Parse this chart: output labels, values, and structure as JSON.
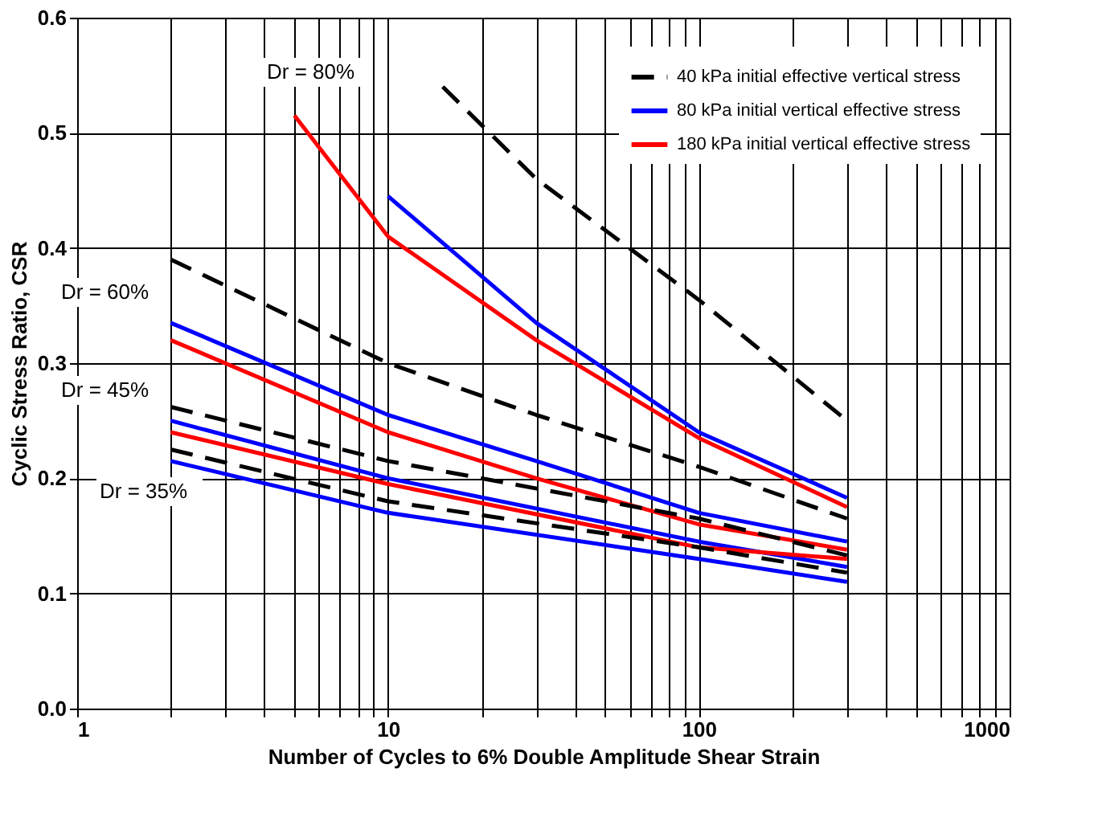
{
  "chart_data": {
    "type": "line",
    "xlabel": "Number of Cycles to 6% Double Amplitude Shear Strain",
    "ylabel": "Cyclic Stress Ratio, CSR",
    "log": "x",
    "grid": true,
    "legend": "top right",
    "xlim": [
      1,
      1000
    ],
    "ylim": [
      0,
      0.6
    ],
    "xticks": [
      1,
      {
        "value": 2,
        "label": null
      },
      {
        "value": 3,
        "label": null
      },
      {
        "value": 4,
        "label": null
      },
      {
        "value": 5,
        "label": null
      },
      {
        "value": 6,
        "label": null
      },
      {
        "value": 7,
        "label": null
      },
      {
        "value": 8,
        "label": null
      },
      {
        "value": 9,
        "label": null
      },
      10,
      {
        "value": 20,
        "label": null
      },
      {
        "value": 30,
        "label": null
      },
      {
        "value": 40,
        "label": null
      },
      {
        "value": 50,
        "label": null
      },
      {
        "value": 60,
        "label": null
      },
      {
        "value": 70,
        "label": null
      },
      {
        "value": 80,
        "label": null
      },
      {
        "value": 90,
        "label": null
      },
      100,
      {
        "value": 200,
        "label": null
      },
      {
        "value": 300,
        "label": null
      },
      {
        "value": 400,
        "label": null
      },
      {
        "value": 500,
        "label": null
      },
      {
        "value": 600,
        "label": null
      },
      {
        "value": 700,
        "label": null
      },
      {
        "value": 800,
        "label": null
      },
      {
        "value": 900,
        "label": null
      },
      1000
    ],
    "yticks": [
      {
        "value": 0,
        "label": "0.0"
      },
      0.1,
      0.2,
      0.3,
      0.4,
      0.5,
      0.6
    ],
    "series": [
      {
        "name": "40 kPa initial effective vertical stress",
        "color": "#000000",
        "line_style": "dashed",
        "x": [
          15,
          30,
          100,
          300
        ],
        "values": [
          0.54,
          0.46,
          0.355,
          0.25
        ]
      },
      {
        "name": "80 kPa initial vertical effective stress",
        "color": "#0000ff",
        "line_style": "solid",
        "x": [
          10,
          30,
          100,
          300
        ],
        "values": [
          0.445,
          0.335,
          0.24,
          0.183
        ]
      },
      {
        "name": "180 kPa initial vertical effective stress",
        "color": "#ff0000",
        "line_style": "solid",
        "x": [
          5,
          10,
          30,
          100,
          300
        ],
        "values": [
          0.515,
          0.41,
          0.32,
          0.235,
          0.175
        ]
      },
      {
        "color": "#000000",
        "line_style": "dashed",
        "x": [
          2,
          10,
          30,
          100,
          300
        ],
        "values": [
          0.39,
          0.3,
          0.255,
          0.21,
          0.165
        ]
      },
      {
        "color": "#0000ff",
        "line_style": "solid",
        "x": [
          2,
          10,
          30,
          100,
          300
        ],
        "values": [
          0.335,
          0.255,
          0.215,
          0.17,
          0.145
        ]
      },
      {
        "color": "#ff0000",
        "line_style": "solid",
        "x": [
          2,
          10,
          30,
          100,
          300
        ],
        "values": [
          0.32,
          0.24,
          0.2,
          0.16,
          0.138
        ]
      },
      {
        "color": "#000000",
        "line_style": "dashed",
        "x": [
          2,
          10,
          100,
          300
        ],
        "values": [
          0.262,
          0.215,
          0.165,
          0.133
        ]
      },
      {
        "color": "#0000ff",
        "line_style": "solid",
        "x": [
          2,
          10,
          100,
          300
        ],
        "values": [
          0.25,
          0.2,
          0.145,
          0.123
        ]
      },
      {
        "color": "#ff0000",
        "line_style": "solid",
        "x": [
          2,
          10,
          100,
          300
        ],
        "values": [
          0.24,
          0.195,
          0.14,
          0.13
        ]
      },
      {
        "color": "#000000",
        "line_style": "dashed",
        "x": [
          2,
          10,
          100,
          300
        ],
        "values": [
          0.225,
          0.18,
          0.14,
          0.118
        ]
      },
      {
        "color": "#0000ff",
        "line_style": "solid",
        "x": [
          2,
          10,
          100,
          300
        ],
        "values": [
          0.215,
          0.17,
          0.13,
          0.11
        ]
      }
    ],
    "annotations": [
      "Dr = 80%",
      "Dr = 60%",
      "Dr = 45%",
      "Dr = 35%"
    ]
  }
}
